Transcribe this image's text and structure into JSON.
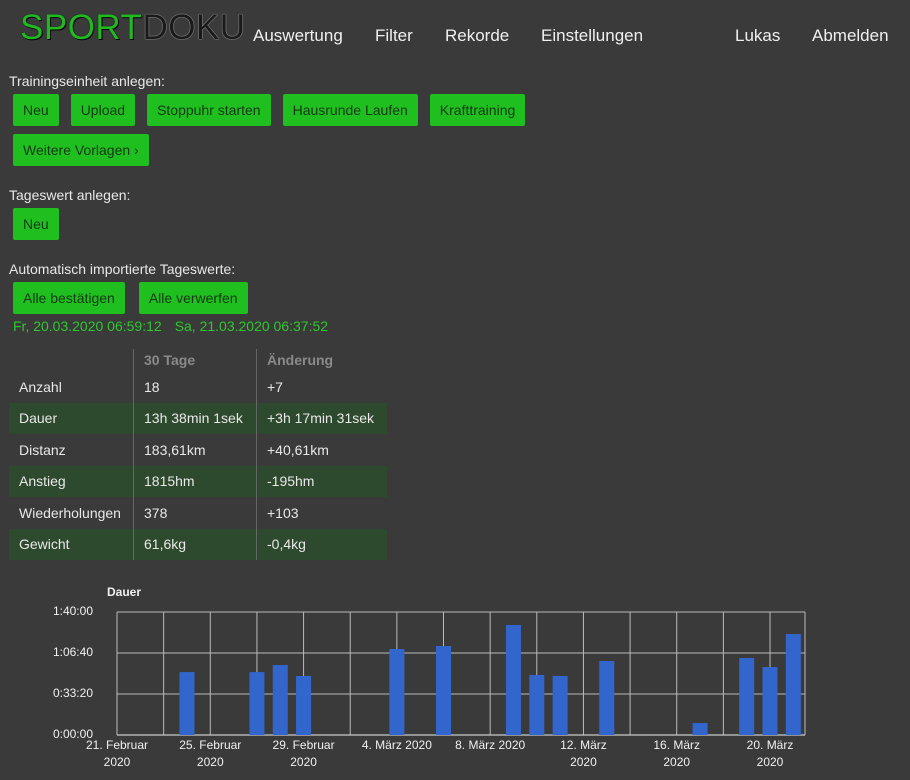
{
  "header": {
    "logo": [
      "SPORT",
      "DOKU"
    ],
    "nav": [
      "Auswertung",
      "Filter",
      "Rekorde",
      "Einstellungen"
    ],
    "user": "Lukas",
    "logout": "Abmelden"
  },
  "training": {
    "label": "Trainingseinheit anlegen:",
    "buttons": [
      "Neu",
      "Upload",
      "Stoppuhr starten",
      "Hausrunde Laufen",
      "Krafttraining"
    ],
    "more": "Weitere Vorlagen ›"
  },
  "daily": {
    "label": "Tageswert anlegen:",
    "buttons": [
      "Neu"
    ]
  },
  "imported": {
    "label": "Automatisch importierte Tageswerte:",
    "buttons": [
      "Alle bestätigen",
      "Alle verwerfen"
    ],
    "entries": [
      "Fr, 20.03.2020 06:59:12",
      "Sa, 21.03.2020 06:37:52"
    ]
  },
  "stats": {
    "columns": [
      "30 Tage",
      "Änderung"
    ],
    "rows": [
      [
        "Anzahl",
        "18",
        "+7"
      ],
      [
        "Dauer",
        "13h 38min 1sek",
        "+3h 17min 31sek"
      ],
      [
        "Distanz",
        "183,61km",
        "+40,61km"
      ],
      [
        "Anstieg",
        "1815hm",
        "-195hm"
      ],
      [
        "Wiederholungen",
        "378",
        "+103"
      ],
      [
        "Gewicht",
        "61,6kg",
        "-0,4kg"
      ]
    ]
  },
  "chart_data": {
    "type": "bar",
    "title": "Dauer",
    "color": "#3366cc",
    "grid": true,
    "x": [
      "2020-02-24",
      "2020-02-27",
      "2020-02-28",
      "2020-02-29",
      "2020-03-04",
      "2020-03-06",
      "2020-03-09",
      "2020-03-10",
      "2020-03-11",
      "2020-03-13",
      "2020-03-17",
      "2020-03-19",
      "2020-03-20",
      "2020-03-21"
    ],
    "values": [
      3070,
      3070,
      3415,
      2880,
      4195,
      4340,
      5365,
      2930,
      2880,
      3610,
      585,
      3755,
      3315,
      4925
    ],
    "xlim": [
      "2020-02-21",
      "2020-03-21"
    ],
    "xticks": [
      {
        "value": "2020-02-21",
        "label": [
          "21. Februar",
          "2020"
        ]
      },
      {
        "value": "2020-02-23",
        "label": null
      },
      {
        "value": "2020-02-25",
        "label": [
          "25. Februar",
          "2020"
        ]
      },
      {
        "value": "2020-02-27",
        "label": null
      },
      {
        "value": "2020-02-29",
        "label": [
          "29. Februar",
          "2020"
        ]
      },
      {
        "value": "2020-03-02",
        "label": null
      },
      {
        "value": "2020-03-04",
        "label": [
          "4. März 2020"
        ]
      },
      {
        "value": "2020-03-06",
        "label": null
      },
      {
        "value": "2020-03-08",
        "label": [
          "8. März 2020"
        ]
      },
      {
        "value": "2020-03-10",
        "label": null
      },
      {
        "value": "2020-03-12",
        "label": [
          "12. März",
          "2020"
        ]
      },
      {
        "value": "2020-03-14",
        "label": null
      },
      {
        "value": "2020-03-16",
        "label": [
          "16. März",
          "2020"
        ]
      },
      {
        "value": "2020-03-18",
        "label": null
      },
      {
        "value": "2020-03-20",
        "label": [
          "20. März",
          "2020"
        ]
      }
    ],
    "ylim": [
      0,
      6000
    ],
    "yticks": [
      {
        "value": 0,
        "label": "0:00:00"
      },
      {
        "value": 2000,
        "label": "0:33:20"
      },
      {
        "value": 4000,
        "label": "1:06:40"
      },
      {
        "value": 6000,
        "label": "1:40:00"
      }
    ]
  }
}
